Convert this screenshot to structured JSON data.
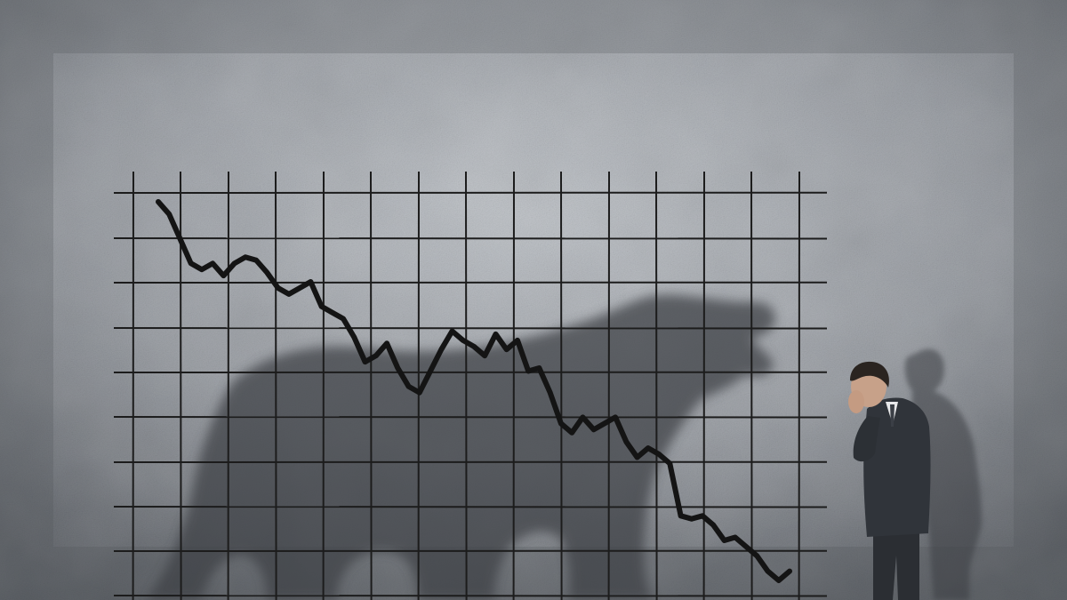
{
  "scene": {
    "description_tags": [
      "concrete-wall",
      "hand-drawn-grid",
      "falling-line",
      "bear-shadow",
      "businessman"
    ],
    "colors": {
      "wall_light": "#b8bcc1",
      "wall_mid": "#9a9ea4",
      "wall_dark": "#5e6268",
      "shadow": "#3f4348",
      "grid_line": "#1a1a1a",
      "trend_line": "#151515",
      "suit": "#2e3136",
      "skin": "#c9a48c"
    }
  },
  "chart_data": {
    "type": "line",
    "title": "",
    "xlabel": "",
    "ylabel": "",
    "trend": "falling",
    "grid": true,
    "series": [
      {
        "values": [
          100,
          96,
          88,
          80,
          78,
          80,
          76,
          80,
          82,
          81,
          77,
          72,
          70,
          72,
          74,
          66,
          64,
          62,
          56,
          48,
          50,
          54,
          46,
          40,
          38,
          45,
          52,
          58,
          55,
          53,
          50,
          57,
          52,
          55,
          45,
          46,
          38,
          28,
          25,
          30,
          26,
          28,
          30,
          22,
          17,
          20,
          18,
          15,
          -2,
          -3,
          -2,
          -5,
          -10,
          -9,
          -12,
          -15,
          -20,
          -23,
          -20
        ]
      }
    ]
  }
}
